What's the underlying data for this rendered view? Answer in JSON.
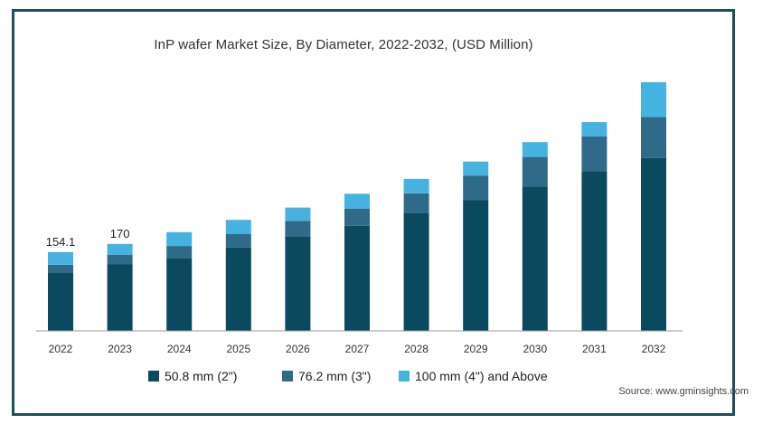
{
  "chart_data": {
    "type": "bar",
    "stacked": true,
    "title": "InP wafer Market Size, By Diameter, 2022-2032, (USD Million)",
    "categories": [
      "2022",
      "2023",
      "2024",
      "2025",
      "2026",
      "2027",
      "2028",
      "2029",
      "2030",
      "2031",
      "2032"
    ],
    "series": [
      {
        "name": "50.8 mm (2\")",
        "color": "#0b4a5e",
        "values": [
          113,
          130,
          142,
          163,
          185,
          205,
          231,
          256,
          282,
          312,
          338
        ]
      },
      {
        "name": "76.2 mm (3\")",
        "color": "#2f6b89",
        "values": [
          16,
          19,
          24,
          26,
          30,
          34,
          38,
          47,
          58,
          68,
          80
        ]
      },
      {
        "name": "100 mm (4\") and Above",
        "color": "#45b2e0",
        "values": [
          25,
          21,
          27,
          28,
          26,
          29,
          28,
          28,
          29,
          28,
          68
        ]
      }
    ],
    "data_labels": [
      {
        "category": "2022",
        "text": "154.1"
      },
      {
        "category": "2023",
        "text": "170"
      }
    ],
    "ylim": [
      0,
      470
    ],
    "grid": false,
    "legend": "bottom",
    "source": "Source: www.gminsights.com"
  }
}
